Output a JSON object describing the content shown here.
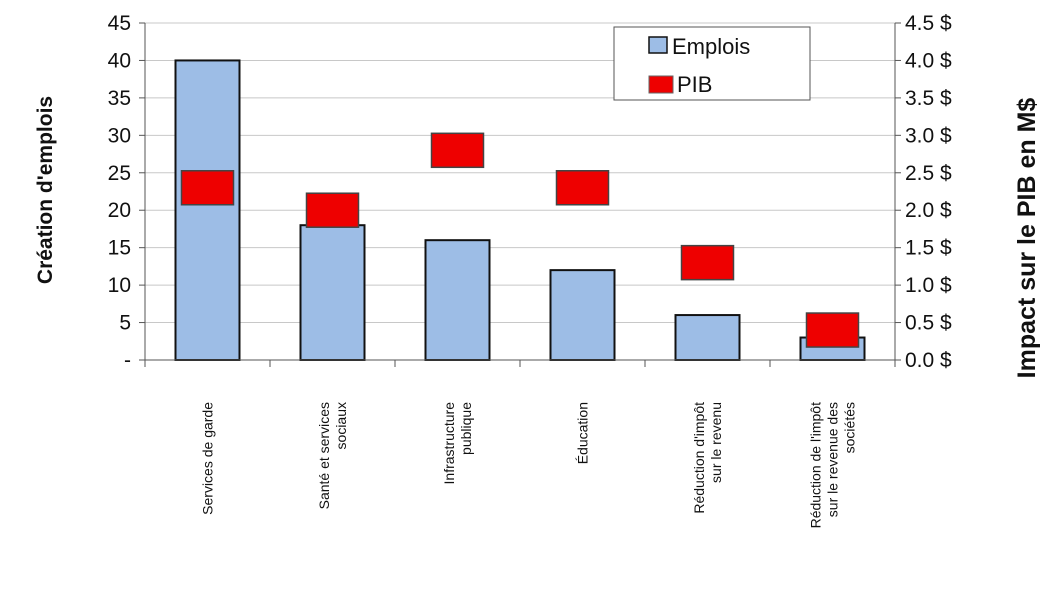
{
  "chart_data": {
    "type": "bar",
    "categories": [
      [
        "Services de garde"
      ],
      [
        "Santé et services",
        "sociaux"
      ],
      [
        "Infrastructure",
        "publique"
      ],
      [
        "Éducation"
      ],
      [
        "Réduction d'impôt",
        "sur le revenu"
      ],
      [
        "Réduction de l'impôt",
        "sur le revenue des",
        "sociétés"
      ]
    ],
    "series": [
      {
        "name": "Emplois",
        "axis": "left",
        "render": "bar",
        "values": [
          40,
          18,
          16,
          12,
          6,
          3
        ],
        "color": "#9dbde6",
        "stroke": "#111111"
      },
      {
        "name": "PIB",
        "axis": "right",
        "render": "marker",
        "values": [
          2.3,
          2.0,
          2.8,
          2.3,
          1.3,
          0.4
        ],
        "color": "#ee0000",
        "stroke": "#444444"
      }
    ],
    "ylabel_left": "Création d'emplois",
    "ylabel_right": "Impact sur le PIB en M$",
    "ylim_left": [
      0,
      45
    ],
    "ylim_right": [
      0,
      4.5
    ],
    "yticks_left": [
      "-",
      "5",
      "10",
      "15",
      "20",
      "25",
      "30",
      "35",
      "40",
      "45"
    ],
    "yticks_right": [
      "0.0 $",
      "0.5 $",
      "1.0 $",
      "1.5 $",
      "2.0 $",
      "2.5 $",
      "3.0 $",
      "3.5 $",
      "4.0 $",
      "4.5 $"
    ],
    "grid": true,
    "legend_position": "top-right",
    "grid_color": "#c8c8c8"
  }
}
